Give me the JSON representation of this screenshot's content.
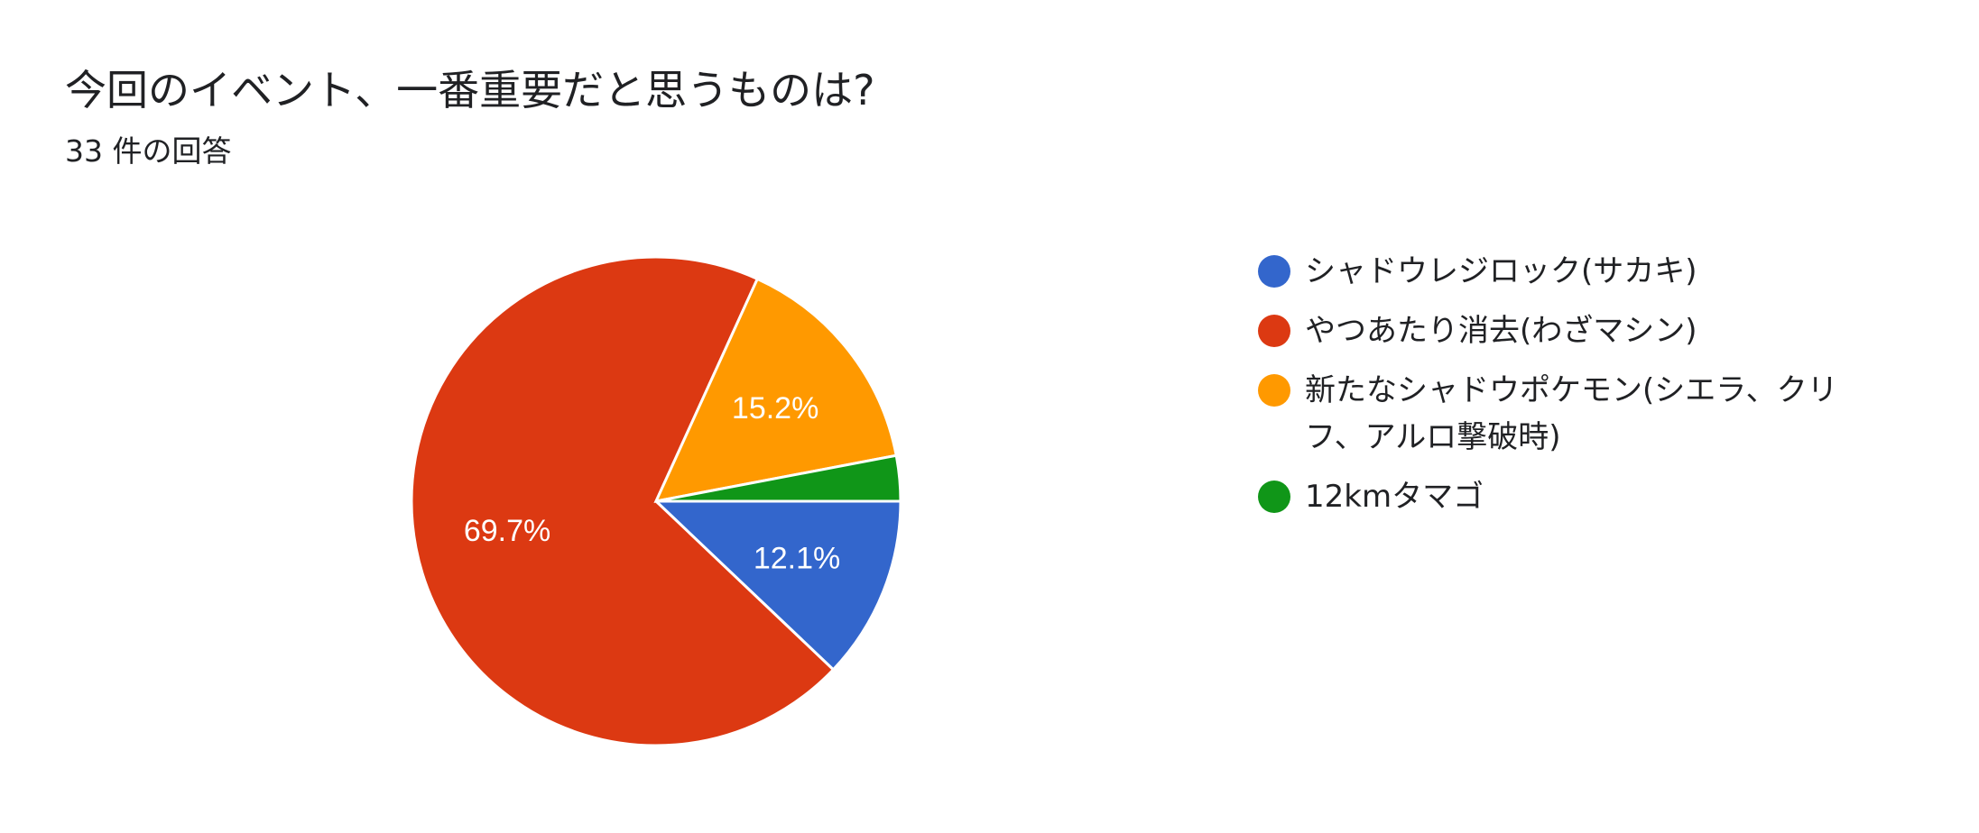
{
  "question": {
    "title": "今回のイベント、一番重要だと思うものは?",
    "response_count": "33 件の回答"
  },
  "chart_data": {
    "type": "pie",
    "title": "今回のイベント、一番重要だと思うものは?",
    "legend_position": "right",
    "slices": [
      {
        "label": "シャドウレジロック(サカキ)",
        "value": 12.1,
        "display": "12.1%",
        "color": "#3366cc"
      },
      {
        "label": "やつあたり消去(わざマシン)",
        "value": 69.7,
        "display": "69.7%",
        "color": "#dc3912"
      },
      {
        "label": "新たなシャドウポケモン(シエラ、クリフ、アルロ撃破時)",
        "value": 15.2,
        "display": "15.2%",
        "color": "#ff9900"
      },
      {
        "label": "12kmタマゴ",
        "value": 3.0,
        "display": "",
        "color": "#109618"
      }
    ]
  }
}
